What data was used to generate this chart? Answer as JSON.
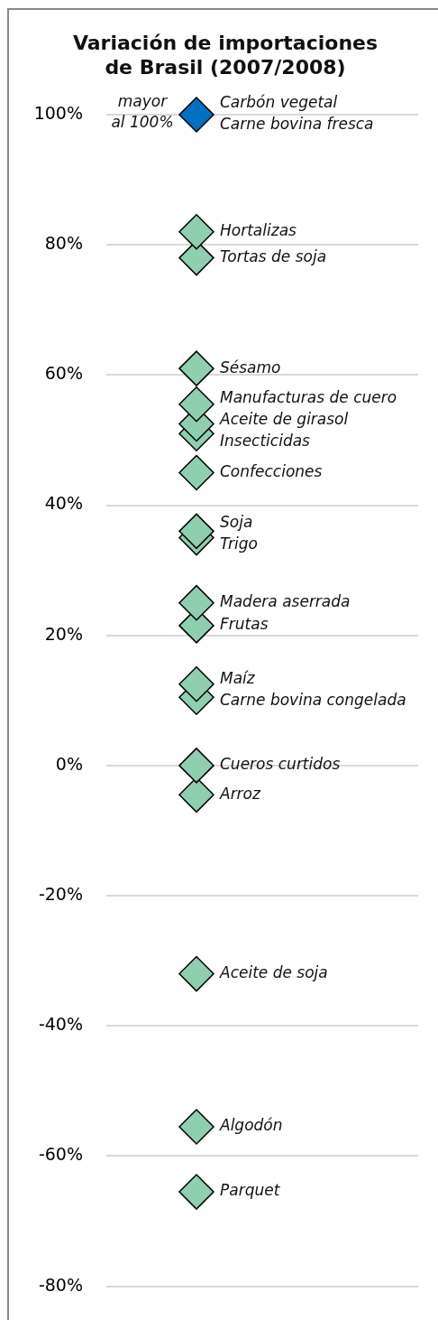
{
  "chart_data": {
    "type": "scatter",
    "title": "Variación de importaciones de Brasil (2007/2008)",
    "categories": [
      null
    ],
    "marker": "diamond",
    "grid": "y",
    "legend": false,
    "ylim": [
      -80,
      100
    ],
    "yticks": [
      {
        "value": -80,
        "label": "-80%"
      },
      {
        "value": -60,
        "label": "-60%"
      },
      {
        "value": -40,
        "label": "-40%"
      },
      {
        "value": -20,
        "label": "-20%"
      },
      {
        "value": 0,
        "label": "0%"
      },
      {
        "value": 20,
        "label": "20%"
      },
      {
        "value": 40,
        "label": "40%"
      },
      {
        "value": 60,
        "label": "60%"
      },
      {
        "value": 80,
        "label": "80%"
      },
      {
        "value": 100,
        "label": "100%"
      }
    ],
    "annotations": [
      "mayor al 100%"
    ],
    "series": [
      {
        "name": "Carbón vegetal\nCarne bovina fresca",
        "color": "#0070c0",
        "values": [
          100
        ]
      },
      {
        "name": "Hortalizas",
        "color": "#8ecfb0",
        "values": [
          82
        ]
      },
      {
        "name": "Tortas de soja",
        "color": "#8ecfb0",
        "values": [
          78
        ]
      },
      {
        "name": "Sésamo",
        "color": "#8ecfb0",
        "values": [
          61
        ]
      },
      {
        "name": "Manufacturas de cuero",
        "color": "#8ecfb0",
        "values": [
          55.5
        ]
      },
      {
        "name": "Aceite de girasol",
        "color": "#8ecfb0",
        "values": [
          52.5
        ]
      },
      {
        "name": "Insecticidas",
        "color": "#8ecfb0",
        "values": [
          51
        ]
      },
      {
        "name": "Confecciones",
        "color": "#8ecfb0",
        "values": [
          45
        ]
      },
      {
        "name": "Soja",
        "color": "#8ecfb0",
        "values": [
          36
        ]
      },
      {
        "name": "Trigo",
        "color": "#8ecfb0",
        "values": [
          35
        ]
      },
      {
        "name": "Madera aserrada",
        "color": "#8ecfb0",
        "values": [
          25
        ]
      },
      {
        "name": "Frutas",
        "color": "#8ecfb0",
        "values": [
          21.5
        ]
      },
      {
        "name": "Maíz",
        "color": "#8ecfb0",
        "values": [
          12.5
        ]
      },
      {
        "name": "Carne bovina congelada",
        "color": "#8ecfb0",
        "values": [
          10.5
        ]
      },
      {
        "name": "Cueros curtidos",
        "color": "#8ecfb0",
        "values": [
          0
        ]
      },
      {
        "name": "Arroz",
        "color": "#8ecfb0",
        "values": [
          -4.5
        ]
      },
      {
        "name": "Aceite de soja",
        "color": "#8ecfb0",
        "values": [
          -32
        ]
      },
      {
        "name": "Algodón",
        "color": "#8ecfb0",
        "values": [
          -55.5
        ]
      },
      {
        "name": "Parquet",
        "color": "#8ecfb0",
        "values": [
          -65.5
        ]
      }
    ]
  }
}
